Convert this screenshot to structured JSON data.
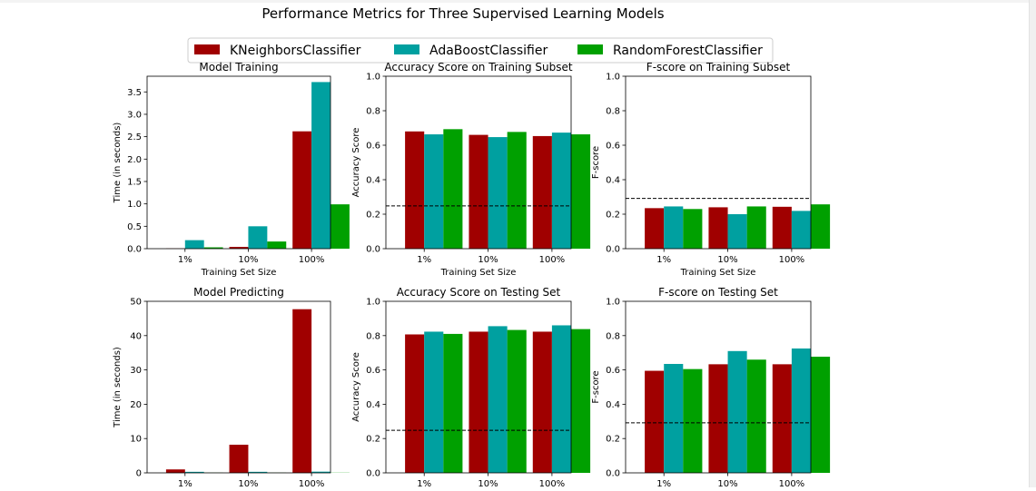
{
  "figure": {
    "title": "Performance Metrics for Three Supervised Learning Models",
    "legend": [
      {
        "name": "KNeighborsClassifier",
        "color": "#a00000"
      },
      {
        "name": "AdaBoostClassifier",
        "color": "#00a0a0"
      },
      {
        "name": "RandomForestClassifier",
        "color": "#00a000"
      }
    ]
  },
  "chart_data": [
    {
      "type": "bar",
      "title": "Model Training",
      "xlabel": "Training Set Size",
      "ylabel": "Time (in seconds)",
      "categories": [
        "1%",
        "10%",
        "100%"
      ],
      "ylim": [
        0,
        3.85
      ],
      "yticks": [
        "0.0",
        "0.5",
        "1.0",
        "1.5",
        "2.0",
        "2.5",
        "3.0",
        "3.5"
      ],
      "series": [
        {
          "name": "KNeighborsClassifier",
          "values": [
            0.005,
            0.04,
            2.62
          ]
        },
        {
          "name": "AdaBoostClassifier",
          "values": [
            0.19,
            0.5,
            3.72
          ]
        },
        {
          "name": "RandomForestClassifier",
          "values": [
            0.03,
            0.16,
            0.99
          ]
        }
      ]
    },
    {
      "type": "bar",
      "title": "Accuracy Score on Training Subset",
      "xlabel": "Training Set Size",
      "ylabel": "Accuracy Score",
      "categories": [
        "1%",
        "10%",
        "100%"
      ],
      "ylim": [
        0,
        1.0
      ],
      "yticks": [
        "0.0",
        "0.2",
        "0.4",
        "0.6",
        "0.8",
        "1.0"
      ],
      "baseline": 0.2478,
      "series": [
        {
          "name": "KNeighborsClassifier",
          "values": [
            0.68,
            0.66,
            0.653
          ]
        },
        {
          "name": "AdaBoostClassifier",
          "values": [
            0.663,
            0.647,
            0.673
          ]
        },
        {
          "name": "RandomForestClassifier",
          "values": [
            0.693,
            0.677,
            0.663
          ]
        }
      ]
    },
    {
      "type": "bar",
      "title": "F-score on Training Subset",
      "xlabel": "Training Set Size",
      "ylabel": "F-score",
      "categories": [
        "1%",
        "10%",
        "100%"
      ],
      "ylim": [
        0,
        1.0
      ],
      "yticks": [
        "0.0",
        "0.2",
        "0.4",
        "0.6",
        "0.8",
        "1.0"
      ],
      "baseline": 0.2917,
      "series": [
        {
          "name": "KNeighborsClassifier",
          "values": [
            0.235,
            0.24,
            0.243
          ]
        },
        {
          "name": "AdaBoostClassifier",
          "values": [
            0.245,
            0.2,
            0.219
          ]
        },
        {
          "name": "RandomForestClassifier",
          "values": [
            0.23,
            0.245,
            0.257
          ]
        }
      ]
    },
    {
      "type": "bar",
      "title": "Model Predicting",
      "xlabel": "",
      "ylabel": "Time (in seconds)",
      "categories": [
        "1%",
        "10%",
        "100%"
      ],
      "ylim": [
        0,
        50
      ],
      "yticks": [
        "0",
        "10",
        "20",
        "30",
        "40",
        "50"
      ],
      "series": [
        {
          "name": "KNeighborsClassifier",
          "values": [
            1.0,
            8.2,
            47.7
          ]
        },
        {
          "name": "AdaBoostClassifier",
          "values": [
            0.3,
            0.3,
            0.35
          ]
        },
        {
          "name": "RandomForestClassifier",
          "values": [
            0.05,
            0.05,
            0.05
          ]
        }
      ]
    },
    {
      "type": "bar",
      "title": "Accuracy Score on Testing Set",
      "xlabel": "",
      "ylabel": "Accuracy Score",
      "categories": [
        "1%",
        "10%",
        "100%"
      ],
      "ylim": [
        0,
        1.0
      ],
      "yticks": [
        "0.0",
        "0.2",
        "0.4",
        "0.6",
        "0.8",
        "1.0"
      ],
      "baseline": 0.2478,
      "series": [
        {
          "name": "KNeighborsClassifier",
          "values": [
            0.807,
            0.823,
            0.823
          ]
        },
        {
          "name": "AdaBoostClassifier",
          "values": [
            0.823,
            0.855,
            0.86
          ]
        },
        {
          "name": "RandomForestClassifier",
          "values": [
            0.81,
            0.833,
            0.838
          ]
        }
      ]
    },
    {
      "type": "bar",
      "title": "F-score on Testing Set",
      "xlabel": "",
      "ylabel": "F-score",
      "categories": [
        "1%",
        "10%",
        "100%"
      ],
      "ylim": [
        0,
        1.0
      ],
      "yticks": [
        "0.0",
        "0.2",
        "0.4",
        "0.6",
        "0.8",
        "1.0"
      ],
      "baseline": 0.2917,
      "series": [
        {
          "name": "KNeighborsClassifier",
          "values": [
            0.595,
            0.633,
            0.633
          ]
        },
        {
          "name": "AdaBoostClassifier",
          "values": [
            0.635,
            0.71,
            0.725
          ]
        },
        {
          "name": "RandomForestClassifier",
          "values": [
            0.605,
            0.66,
            0.677
          ]
        }
      ]
    }
  ]
}
